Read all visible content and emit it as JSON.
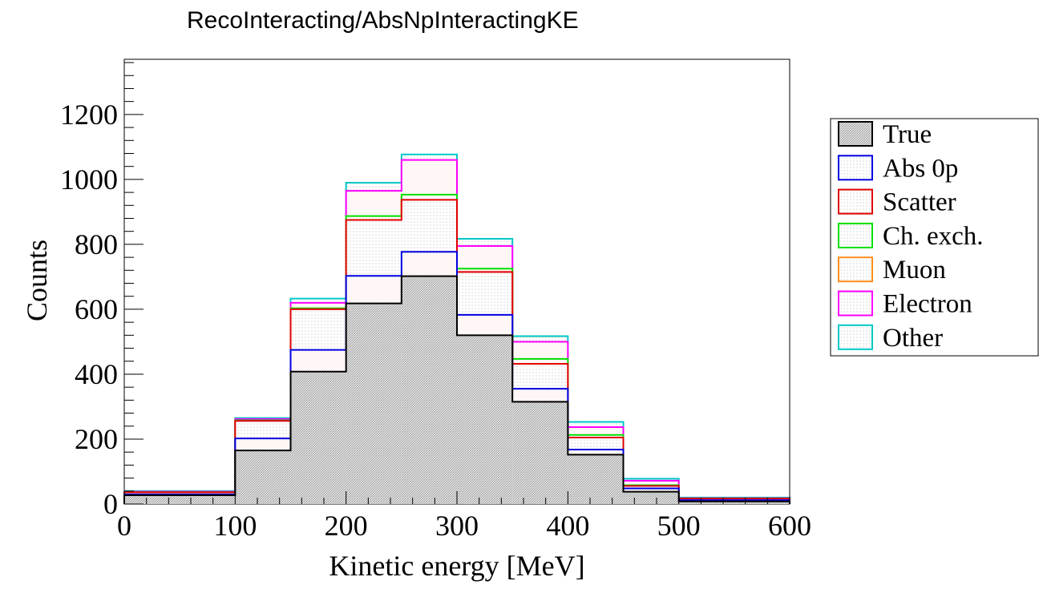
{
  "chart_data": {
    "type": "bar",
    "title": "RecoInteracting/AbsNpInteractingKE",
    "xlabel": "Kinetic energy [MeV]",
    "ylabel": "Counts",
    "xlim": [
      0,
      600
    ],
    "ylim": [
      0,
      1370
    ],
    "x_ticks": [
      "0",
      "100",
      "200",
      "300",
      "400",
      "500",
      "600"
    ],
    "y_ticks": [
      "0",
      "200",
      "400",
      "600",
      "800",
      "1000",
      "1200"
    ],
    "bin_edges": [
      0,
      100,
      150,
      200,
      250,
      300,
      350,
      400,
      450,
      500,
      600
    ],
    "stacked_cumulative": true,
    "legend_position": "right",
    "series": [
      {
        "name": "Other",
        "color": "#00c8c8",
        "values": [
          40,
          265,
          633,
          990,
          1077,
          817,
          517,
          253,
          78,
          20
        ]
      },
      {
        "name": "Electron",
        "color": "#ff00ff",
        "values": [
          38,
          262,
          620,
          965,
          1060,
          795,
          500,
          237,
          72,
          18
        ]
      },
      {
        "name": "Muon",
        "color": "#ff8c1a",
        "values": [
          36,
          258,
          603,
          880,
          948,
          722,
          442,
          212,
          58,
          17
        ]
      },
      {
        "name": "Ch. exch.",
        "color": "#00e000",
        "values": [
          36,
          258,
          603,
          887,
          953,
          725,
          447,
          213,
          58,
          17
        ]
      },
      {
        "name": "Scatter",
        "color": "#e00000",
        "values": [
          36,
          256,
          600,
          875,
          937,
          715,
          432,
          205,
          56,
          17
        ]
      },
      {
        "name": "Abs 0p",
        "color": "#0000e0",
        "values": [
          30,
          202,
          475,
          703,
          777,
          583,
          355,
          168,
          48,
          12
        ]
      },
      {
        "name": "True",
        "color": "#000000",
        "values": [
          27,
          165,
          408,
          618,
          702,
          520,
          315,
          152,
          38,
          8
        ]
      }
    ],
    "legend": [
      "True",
      "Abs 0p",
      "Scatter",
      "Ch. exch.",
      "Muon",
      "Electron",
      "Other"
    ]
  }
}
